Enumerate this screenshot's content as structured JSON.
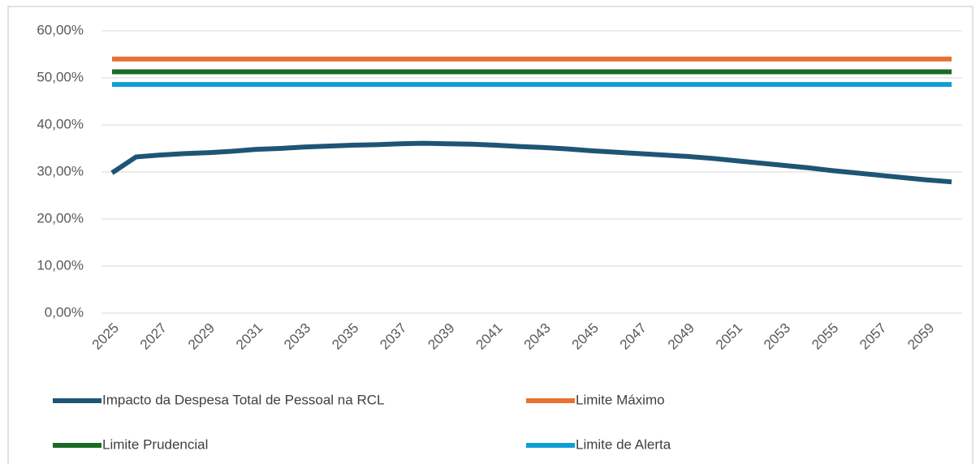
{
  "chart_data": {
    "type": "line",
    "categories": [
      "2025",
      null,
      "2027",
      null,
      "2029",
      null,
      "2031",
      null,
      "2033",
      null,
      "2035",
      null,
      "2037",
      null,
      "2039",
      null,
      "2041",
      null,
      "2043",
      null,
      "2045",
      null,
      "2047",
      null,
      "2049",
      null,
      "2051",
      null,
      "2053",
      null,
      "2055",
      null,
      "2057",
      null,
      "2059",
      null
    ],
    "series": [
      {
        "name": "Impacto da Despesa Total de Pessoal na RCL",
        "color": "#1e5576",
        "values": [
          29.8,
          33.2,
          33.6,
          33.9,
          34.1,
          34.4,
          34.8,
          35.0,
          35.3,
          35.5,
          35.7,
          35.8,
          36.0,
          36.1,
          36.0,
          35.9,
          35.7,
          35.4,
          35.2,
          34.9,
          34.5,
          34.2,
          33.9,
          33.6,
          33.3,
          32.9,
          32.4,
          31.9,
          31.4,
          30.9,
          30.3,
          29.8,
          29.3,
          28.8,
          28.3,
          27.9
        ]
      },
      {
        "name": "Limite Máximo",
        "color": "#e97132",
        "values": [
          54,
          54,
          54,
          54,
          54,
          54,
          54,
          54,
          54,
          54,
          54,
          54,
          54,
          54,
          54,
          54,
          54,
          54,
          54,
          54,
          54,
          54,
          54,
          54,
          54,
          54,
          54,
          54,
          54,
          54,
          54,
          54,
          54,
          54,
          54,
          54
        ]
      },
      {
        "name": "Limite Prudencial",
        "color": "#196b24",
        "values": [
          51.3,
          51.3,
          51.3,
          51.3,
          51.3,
          51.3,
          51.3,
          51.3,
          51.3,
          51.3,
          51.3,
          51.3,
          51.3,
          51.3,
          51.3,
          51.3,
          51.3,
          51.3,
          51.3,
          51.3,
          51.3,
          51.3,
          51.3,
          51.3,
          51.3,
          51.3,
          51.3,
          51.3,
          51.3,
          51.3,
          51.3,
          51.3,
          51.3,
          51.3,
          51.3,
          51.3
        ]
      },
      {
        "name": "Limite de Alerta",
        "color": "#0f9ed5",
        "values": [
          48.6,
          48.6,
          48.6,
          48.6,
          48.6,
          48.6,
          48.6,
          48.6,
          48.6,
          48.6,
          48.6,
          48.6,
          48.6,
          48.6,
          48.6,
          48.6,
          48.6,
          48.6,
          48.6,
          48.6,
          48.6,
          48.6,
          48.6,
          48.6,
          48.6,
          48.6,
          48.6,
          48.6,
          48.6,
          48.6,
          48.6,
          48.6,
          48.6,
          48.6,
          48.6,
          48.6
        ]
      }
    ],
    "ylim": [
      0,
      60
    ],
    "yticks": [
      {
        "value": 0,
        "label": "0,00%"
      },
      {
        "value": 10,
        "label": "10,00%"
      },
      {
        "value": 20,
        "label": "20,00%"
      },
      {
        "value": 30,
        "label": "30,00%"
      },
      {
        "value": 40,
        "label": "40,00%"
      },
      {
        "value": 50,
        "label": "50,00%"
      },
      {
        "value": 60,
        "label": "60,00%"
      }
    ],
    "grid": true,
    "legend": "bottom"
  }
}
